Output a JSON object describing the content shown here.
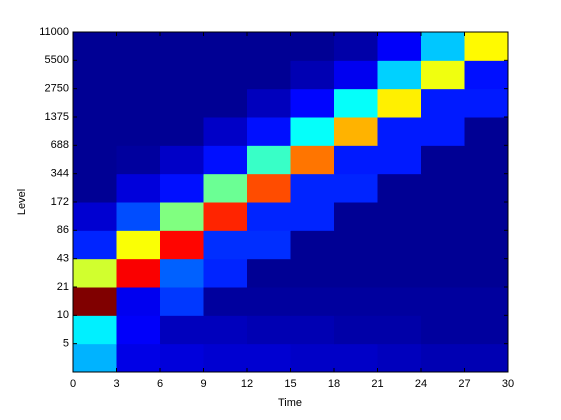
{
  "chart_data": {
    "type": "heatmap",
    "x_label": "Time",
    "y_label": "Level",
    "colormap": "jet",
    "clim": [
      0,
      1
    ],
    "xlim": [
      0,
      30
    ],
    "xticks": [
      0,
      3,
      6,
      9,
      12,
      15,
      18,
      21,
      24,
      27,
      30
    ],
    "ylim": [
      0,
      12
    ],
    "yticks": [
      {
        "value": 1,
        "label": "5"
      },
      {
        "value": 2,
        "label": "10"
      },
      {
        "value": 3,
        "label": "21"
      },
      {
        "value": 4,
        "label": "43"
      },
      {
        "value": 5,
        "label": "86"
      },
      {
        "value": 6,
        "label": "172"
      },
      {
        "value": 7,
        "label": "344"
      },
      {
        "value": 8,
        "label": "688"
      },
      {
        "value": 9,
        "label": "1375"
      },
      {
        "value": 10,
        "label": "2750"
      },
      {
        "value": 11,
        "label": "5500"
      },
      {
        "value": 12,
        "label": "11000"
      }
    ],
    "z": [
      [
        0.3,
        0.1,
        0.09,
        0.08,
        0.08,
        0.07,
        0.07,
        0.06,
        0.05,
        0.05
      ],
      [
        0.36,
        0.12,
        0.06,
        0.06,
        0.05,
        0.05,
        0.04,
        0.04,
        0.03,
        0.03
      ],
      [
        1.0,
        0.11,
        0.18,
        0.03,
        0.03,
        0.03,
        0.03,
        0.03,
        0.03,
        0.03
      ],
      [
        0.58,
        0.88,
        0.22,
        0.16,
        0.02,
        0.02,
        0.02,
        0.02,
        0.02,
        0.02
      ],
      [
        0.16,
        0.62,
        0.87,
        0.17,
        0.17,
        0.02,
        0.02,
        0.02,
        0.02,
        0.02
      ],
      [
        0.08,
        0.2,
        0.5,
        0.84,
        0.16,
        0.16,
        0.02,
        0.02,
        0.02,
        0.02
      ],
      [
        0.02,
        0.09,
        0.14,
        0.48,
        0.8,
        0.16,
        0.16,
        0.02,
        0.02,
        0.02
      ],
      [
        0.02,
        0.03,
        0.07,
        0.14,
        0.43,
        0.76,
        0.15,
        0.15,
        0.02,
        0.02
      ],
      [
        0.02,
        0.02,
        0.02,
        0.07,
        0.14,
        0.38,
        0.7,
        0.15,
        0.15,
        0.02
      ],
      [
        0.02,
        0.02,
        0.02,
        0.02,
        0.06,
        0.13,
        0.38,
        0.64,
        0.15,
        0.15
      ],
      [
        0.02,
        0.02,
        0.02,
        0.02,
        0.02,
        0.05,
        0.11,
        0.33,
        0.61,
        0.14
      ],
      [
        0.02,
        0.02,
        0.02,
        0.02,
        0.02,
        0.02,
        0.04,
        0.12,
        0.32,
        0.63
      ]
    ]
  }
}
